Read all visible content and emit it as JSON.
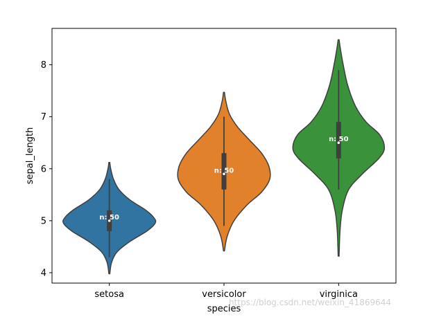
{
  "chart_data": {
    "type": "violin",
    "xlabel": "species",
    "ylabel": "sepal_length",
    "ylim": [
      3.8,
      8.7
    ],
    "yticks": [
      "4",
      "5",
      "6",
      "7",
      "8"
    ],
    "grid": false,
    "categories": [
      "setosa",
      "versicolor",
      "virginica"
    ],
    "colors": [
      "#3274a1",
      "#e1812c",
      "#3a923a"
    ],
    "series": [
      {
        "category": "setosa",
        "n_label": "n: 50",
        "min": 4.3,
        "q1": 4.8,
        "median": 5.0,
        "q3": 5.2,
        "max": 5.8,
        "kde_min": 3.98,
        "kde_max": 6.12,
        "density": [
          [
            3.98,
            0.01
          ],
          [
            4.2,
            0.05
          ],
          [
            4.4,
            0.17
          ],
          [
            4.6,
            0.45
          ],
          [
            4.8,
            0.82
          ],
          [
            4.95,
            1.0
          ],
          [
            5.05,
            0.98
          ],
          [
            5.2,
            0.8
          ],
          [
            5.4,
            0.45
          ],
          [
            5.6,
            0.21
          ],
          [
            5.8,
            0.09
          ],
          [
            6.0,
            0.03
          ],
          [
            6.12,
            0.01
          ]
        ]
      },
      {
        "category": "versicolor",
        "n_label": "n: 50",
        "min": 4.9,
        "q1": 5.6,
        "median": 5.9,
        "q3": 6.3,
        "max": 7.0,
        "kde_min": 4.42,
        "kde_max": 7.47,
        "density": [
          [
            4.42,
            0.01
          ],
          [
            4.7,
            0.07
          ],
          [
            5.0,
            0.22
          ],
          [
            5.3,
            0.5
          ],
          [
            5.55,
            0.82
          ],
          [
            5.8,
            1.0
          ],
          [
            6.05,
            0.98
          ],
          [
            6.3,
            0.82
          ],
          [
            6.55,
            0.56
          ],
          [
            6.8,
            0.3
          ],
          [
            7.05,
            0.12
          ],
          [
            7.3,
            0.04
          ],
          [
            7.47,
            0.01
          ]
        ]
      },
      {
        "category": "virginica",
        "n_label": "n: 50",
        "min": 5.6,
        "q1": 6.2,
        "median": 6.5,
        "q3": 6.9,
        "max": 7.9,
        "kde_min": 4.32,
        "kde_max": 8.48,
        "density": [
          [
            4.32,
            0.01
          ],
          [
            4.8,
            0.03
          ],
          [
            5.2,
            0.08
          ],
          [
            5.6,
            0.22
          ],
          [
            5.9,
            0.52
          ],
          [
            6.2,
            0.88
          ],
          [
            6.4,
            1.0
          ],
          [
            6.65,
            0.9
          ],
          [
            6.9,
            0.6
          ],
          [
            7.2,
            0.37
          ],
          [
            7.6,
            0.2
          ],
          [
            8.0,
            0.1
          ],
          [
            8.3,
            0.04
          ],
          [
            8.48,
            0.01
          ]
        ]
      }
    ]
  },
  "watermark": "https://blog.csdn.net/weixin_41869644"
}
